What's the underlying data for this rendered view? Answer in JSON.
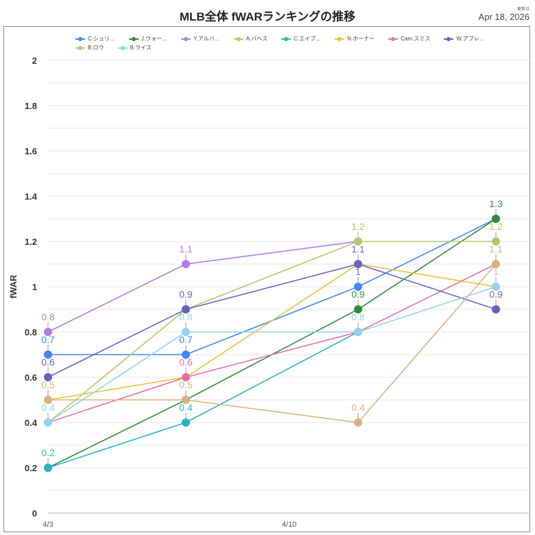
{
  "header": {
    "title": "MLB全体 fWARランキングの推移",
    "updated_label": "更新日",
    "updated_date": "Apr 18, 2026"
  },
  "chart_data": {
    "type": "line",
    "title": "MLB全体 fWARランキングの推移",
    "xlabel": "",
    "ylabel": "fWAR",
    "ylim": [
      0,
      2
    ],
    "yticks": [
      "0",
      "0.2",
      "0.4",
      "0.6",
      "0.8",
      "1",
      "1.2",
      "1.4",
      "1.6",
      "1.8",
      "2"
    ],
    "xticks": [
      "4/3",
      "4/10"
    ],
    "x": [
      "4/3",
      "4/7",
      "4/12",
      "4/16"
    ],
    "grid": true,
    "legend": "top",
    "series": [
      {
        "name": "C.シュリ…",
        "color": "#4285f4",
        "values": [
          0.7,
          0.7,
          1.0,
          1.3
        ]
      },
      {
        "name": "J.ウォー…",
        "color": "#2e8b3e",
        "values": [
          0.2,
          0.5,
          0.9,
          1.3
        ]
      },
      {
        "name": "Y.アルバ…",
        "color": "#b07ce8",
        "values": [
          0.8,
          1.1,
          1.2,
          null
        ]
      },
      {
        "name": "A.バヘス",
        "color": "#b5c96a",
        "values": [
          0.4,
          0.9,
          1.2,
          1.2
        ]
      },
      {
        "name": "C.エイブ…",
        "color": "#26b5c4",
        "values": [
          0.2,
          0.4,
          0.8,
          null
        ]
      },
      {
        "name": "N.ホーナー",
        "color": "#f0c030",
        "values": [
          0.5,
          0.6,
          1.1,
          1.0
        ]
      },
      {
        "name": "Cam.スミス",
        "color": "#e8709f",
        "values": [
          0.4,
          0.6,
          0.8,
          1.1
        ]
      },
      {
        "name": "W.アブレ…",
        "color": "#6a62c0",
        "values": [
          0.6,
          0.9,
          1.1,
          0.9
        ]
      },
      {
        "name": "B.ロウ",
        "color": "#d9b47f",
        "values": [
          0.5,
          0.5,
          0.4,
          1.1
        ]
      },
      {
        "name": "B.ライス",
        "color": "#90d4ee",
        "values": [
          0.4,
          0.8,
          0.8,
          1.0
        ]
      }
    ]
  }
}
